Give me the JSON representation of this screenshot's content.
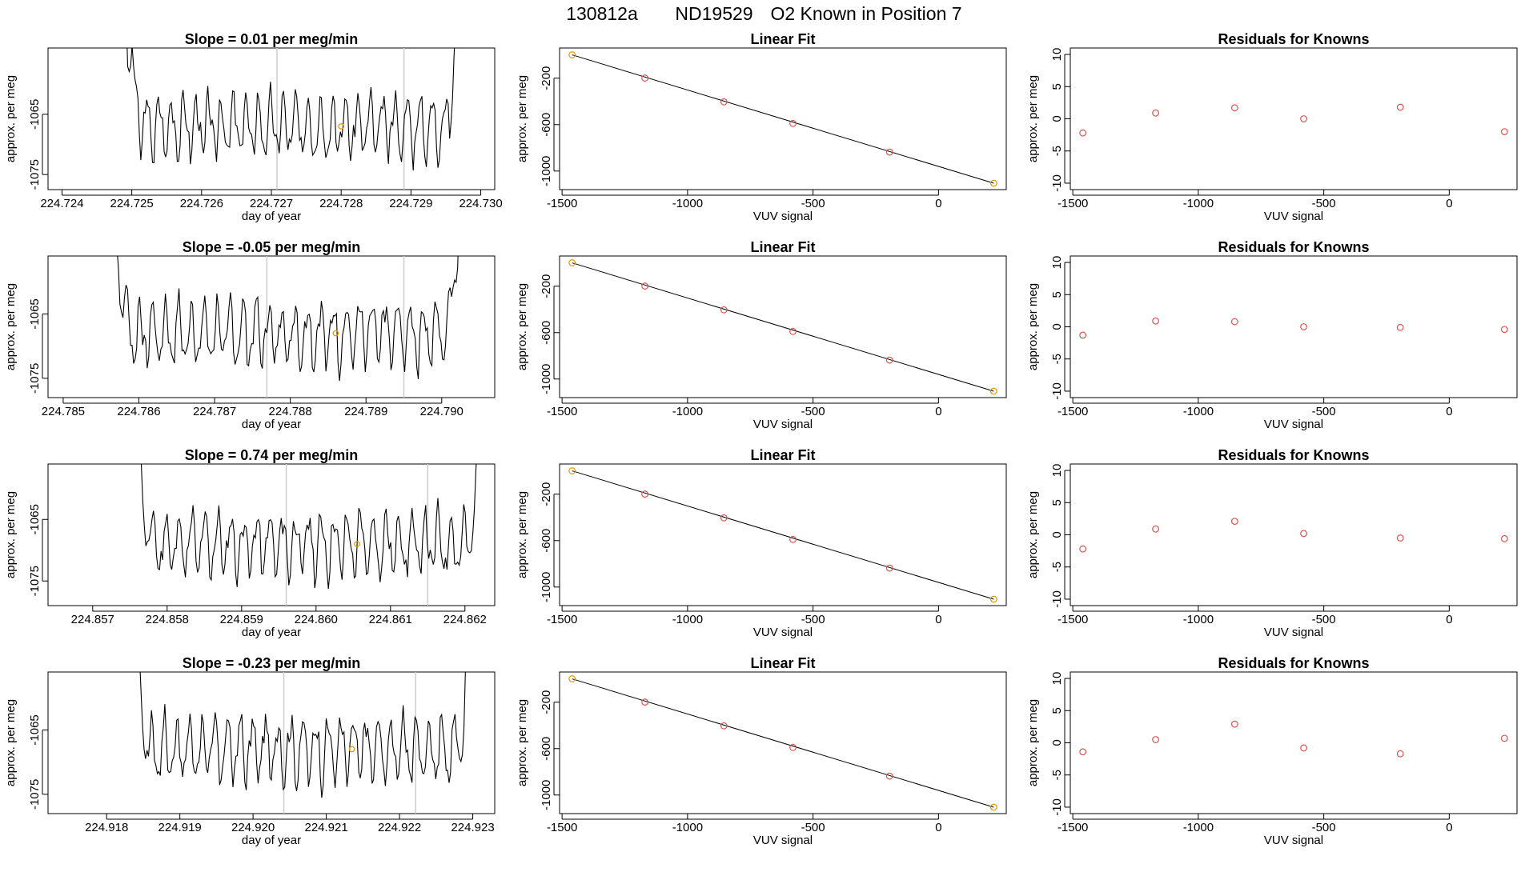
{
  "page_title": {
    "run": "130812a",
    "tank": "ND19529",
    "description": "O2 Known in Position  7"
  },
  "colors": {
    "trace": "#000000",
    "fit_line": "#000000",
    "known_point": "#d9534f",
    "highlight_point": "#e69500",
    "vline": "#cccccc"
  },
  "chart_data": [
    {
      "id": "r1-ts",
      "type": "line",
      "title": "Slope =  0.01  per meg/min",
      "xlabel": "day of year",
      "ylabel": "approx. per meg",
      "xlim": [
        224.7238,
        224.7302
      ],
      "ylim": [
        -1077.5,
        -1054
      ],
      "xticks": [
        224.724,
        224.725,
        224.726,
        224.727,
        224.728,
        224.729,
        224.73
      ],
      "xtick_labels": [
        "224.724",
        "224.725",
        "224.726",
        "224.727",
        "224.728",
        "224.729",
        "224.730"
      ],
      "yticks": [
        -1065,
        -1075
      ],
      "ytick_labels": [
        "-1065",
        "-1075"
      ],
      "trace_start": 224.7249,
      "trace_end": 224.7297,
      "vlines": [
        224.72708,
        224.7289
      ],
      "highlight": {
        "x": 224.728,
        "y": -1067
      },
      "baseline": -1067,
      "amplitude": 4.5,
      "seed": 3
    },
    {
      "id": "r1-fit",
      "type": "scatter_line",
      "title": "Linear Fit",
      "xlabel": "VUV signal",
      "ylabel": "approx. per meg",
      "xlim": [
        -1510,
        270
      ],
      "ylim": [
        -1160,
        60
      ],
      "xticks": [
        -1500,
        -1000,
        -500,
        0
      ],
      "xtick_labels": [
        "-1500",
        "-1000",
        "-500",
        "0"
      ],
      "yticks": [
        -200,
        -600,
        -1000
      ],
      "ytick_labels": [
        "-200",
        "-600",
        "-1000"
      ],
      "x": [
        -1460,
        -1170,
        -855,
        -580,
        -195,
        220
      ],
      "y": [
        1,
        -199,
        -404,
        -590,
        -837,
        -1105
      ],
      "fit": {
        "x": [
          -1460,
          220
        ],
        "y": [
          1,
          -1105
        ]
      }
    },
    {
      "id": "r1-res",
      "type": "scatter",
      "title": "Residuals for Knowns",
      "xlabel": "VUV signal",
      "ylabel": "approx. per meg",
      "xlim": [
        -1510,
        270
      ],
      "ylim": [
        -11,
        11
      ],
      "xticks": [
        -1500,
        -1000,
        -500,
        0
      ],
      "xtick_labels": [
        "-1500",
        "-1000",
        "-500",
        "0"
      ],
      "yticks": [
        10,
        5,
        0,
        -5,
        -10
      ],
      "ytick_labels": [
        "10",
        "5",
        "0",
        "-5",
        "-10"
      ],
      "x": [
        -1460,
        -1170,
        -855,
        -580,
        -195,
        220
      ],
      "y": [
        -2.2,
        0.9,
        1.7,
        0.0,
        1.8,
        -2.0
      ]
    },
    {
      "id": "r2-ts",
      "type": "line",
      "title": "Slope =  -0.05  per meg/min",
      "xlabel": "day of year",
      "ylabel": "approx. per meg",
      "xlim": [
        224.7848,
        224.7907
      ],
      "ylim": [
        -1078,
        -1056
      ],
      "xticks": [
        224.785,
        224.786,
        224.787,
        224.788,
        224.789,
        224.79
      ],
      "xtick_labels": [
        "224.785",
        "224.786",
        "224.787",
        "224.788",
        "224.789",
        "224.790"
      ],
      "yticks": [
        -1065,
        -1075
      ],
      "ytick_labels": [
        "-1065",
        "-1075"
      ],
      "trace_start": 224.78565,
      "trace_end": 224.79025,
      "vlines": [
        224.78769,
        224.7895
      ],
      "highlight": {
        "x": 224.7886,
        "y": -1068
      },
      "baseline": -1068,
      "amplitude": 4.5,
      "seed": 7
    },
    {
      "id": "r2-fit",
      "type": "scatter_line",
      "title": "Linear Fit",
      "xlabel": "VUV signal",
      "ylabel": "approx. per meg",
      "xlim": [
        -1510,
        270
      ],
      "ylim": [
        -1160,
        60
      ],
      "xticks": [
        -1500,
        -1000,
        -500,
        0
      ],
      "xtick_labels": [
        "-1500",
        "-1000",
        "-500",
        "0"
      ],
      "yticks": [
        -200,
        -600,
        -1000
      ],
      "ytick_labels": [
        "-200",
        "-600",
        "-1000"
      ],
      "x": [
        -1460,
        -1170,
        -855,
        -580,
        -195,
        220
      ],
      "y": [
        1,
        -199,
        -404,
        -590,
        -837,
        -1105
      ],
      "fit": {
        "x": [
          -1460,
          220
        ],
        "y": [
          1,
          -1105
        ]
      }
    },
    {
      "id": "r2-res",
      "type": "scatter",
      "title": "Residuals for Knowns",
      "xlabel": "VUV signal",
      "ylabel": "approx. per meg",
      "xlim": [
        -1510,
        270
      ],
      "ylim": [
        -11,
        11
      ],
      "xticks": [
        -1500,
        -1000,
        -500,
        0
      ],
      "xtick_labels": [
        "-1500",
        "-1000",
        "-500",
        "0"
      ],
      "yticks": [
        10,
        5,
        0,
        -5,
        -10
      ],
      "ytick_labels": [
        "10",
        "5",
        "0",
        "-5",
        "-10"
      ],
      "x": [
        -1460,
        -1170,
        -855,
        -580,
        -195,
        220
      ],
      "y": [
        -1.3,
        0.9,
        0.8,
        0.0,
        -0.1,
        -0.4
      ]
    },
    {
      "id": "r3-ts",
      "type": "line",
      "title": "Slope =  0.74  per meg/min",
      "xlabel": "day of year",
      "ylabel": "approx. per meg",
      "xlim": [
        224.8564,
        224.8624
      ],
      "ylim": [
        -1079,
        -1056
      ],
      "xticks": [
        224.857,
        224.858,
        224.859,
        224.86,
        224.861,
        224.862
      ],
      "xtick_labels": [
        "224.857",
        "224.858",
        "224.859",
        "224.860",
        "224.861",
        "224.862"
      ],
      "yticks": [
        -1065,
        -1075
      ],
      "ytick_labels": [
        "-1065",
        "-1075"
      ],
      "trace_start": 224.85755,
      "trace_end": 224.86225,
      "vlines": [
        224.8596,
        224.8615
      ],
      "highlight": {
        "x": 224.86055,
        "y": -1069
      },
      "baseline": -1069,
      "amplitude": 4.5,
      "seed": 11
    },
    {
      "id": "r3-fit",
      "type": "scatter_line",
      "title": "Linear Fit",
      "xlabel": "VUV signal",
      "ylabel": "approx. per meg",
      "xlim": [
        -1510,
        270
      ],
      "ylim": [
        -1160,
        60
      ],
      "xticks": [
        -1500,
        -1000,
        -500,
        0
      ],
      "xtick_labels": [
        "-1500",
        "-1000",
        "-500",
        "0"
      ],
      "yticks": [
        -200,
        -600,
        -1000
      ],
      "ytick_labels": [
        "-200",
        "-600",
        "-1000"
      ],
      "x": [
        -1460,
        -1170,
        -855,
        -580,
        -195,
        220
      ],
      "y": [
        1,
        -199,
        -404,
        -590,
        -837,
        -1105
      ],
      "fit": {
        "x": [
          -1460,
          220
        ],
        "y": [
          1,
          -1105
        ]
      }
    },
    {
      "id": "r3-res",
      "type": "scatter",
      "title": "Residuals for Knowns",
      "xlabel": "VUV signal",
      "ylabel": "approx. per meg",
      "xlim": [
        -1510,
        270
      ],
      "ylim": [
        -11,
        11
      ],
      "xticks": [
        -1500,
        -1000,
        -500,
        0
      ],
      "xtick_labels": [
        "-1500",
        "-1000",
        "-500",
        "0"
      ],
      "yticks": [
        10,
        5,
        0,
        -5,
        -10
      ],
      "ytick_labels": [
        "10",
        "5",
        "0",
        "-5",
        "-10"
      ],
      "x": [
        -1460,
        -1170,
        -855,
        -580,
        -195,
        220
      ],
      "y": [
        -2.2,
        0.9,
        2.1,
        0.2,
        -0.5,
        -0.6
      ]
    },
    {
      "id": "r4-ts",
      "type": "line",
      "title": "Slope =  -0.23  per meg/min",
      "xlabel": "day of year",
      "ylabel": "approx. per meg",
      "xlim": [
        224.9172,
        224.9233
      ],
      "ylim": [
        -1078,
        -1056
      ],
      "xticks": [
        224.918,
        224.919,
        224.92,
        224.921,
        224.922,
        224.923
      ],
      "xtick_labels": [
        "224.918",
        "224.919",
        "224.920",
        "224.921",
        "224.922",
        "224.923"
      ],
      "yticks": [
        -1065,
        -1075
      ],
      "ytick_labels": [
        "-1065",
        "-1075"
      ],
      "trace_start": 224.91835,
      "trace_end": 224.923,
      "vlines": [
        224.92042,
        224.92222
      ],
      "highlight": {
        "x": 224.92135,
        "y": -1068
      },
      "baseline": -1068,
      "amplitude": 4.5,
      "seed": 17
    },
    {
      "id": "r4-fit",
      "type": "scatter_line",
      "title": "Linear Fit",
      "xlabel": "VUV signal",
      "ylabel": "approx. per meg",
      "xlim": [
        -1510,
        270
      ],
      "ylim": [
        -1160,
        60
      ],
      "xticks": [
        -1500,
        -1000,
        -500,
        0
      ],
      "xtick_labels": [
        "-1500",
        "-1000",
        "-500",
        "0"
      ],
      "yticks": [
        -200,
        -600,
        -1000
      ],
      "ytick_labels": [
        "-200",
        "-600",
        "-1000"
      ],
      "x": [
        -1460,
        -1170,
        -855,
        -580,
        -195,
        220
      ],
      "y": [
        1,
        -199,
        -404,
        -590,
        -837,
        -1105
      ],
      "fit": {
        "x": [
          -1460,
          220
        ],
        "y": [
          1,
          -1105
        ]
      }
    },
    {
      "id": "r4-res",
      "type": "scatter",
      "title": "Residuals for Knowns",
      "xlabel": "VUV signal",
      "ylabel": "approx. per meg",
      "xlim": [
        -1510,
        270
      ],
      "ylim": [
        -11,
        11
      ],
      "xticks": [
        -1500,
        -1000,
        -500,
        0
      ],
      "xtick_labels": [
        "-1500",
        "-1000",
        "-500",
        "0"
      ],
      "yticks": [
        10,
        5,
        0,
        -5,
        -10
      ],
      "ytick_labels": [
        "10",
        "5",
        "0",
        "-5",
        "-10"
      ],
      "x": [
        -1460,
        -1170,
        -855,
        -580,
        -195,
        220
      ],
      "y": [
        -1.4,
        0.5,
        2.9,
        -0.8,
        -1.7,
        0.7
      ]
    }
  ]
}
